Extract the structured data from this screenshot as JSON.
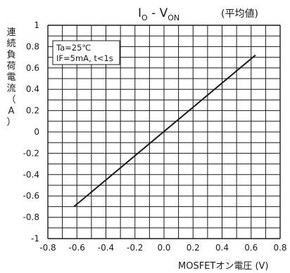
{
  "chart_data": {
    "type": "line",
    "title": "I",
    "title_sub1": "O",
    "title_mid": " - V",
    "title_sub2": "ON",
    "note": "(平均値)",
    "xlabel": "MOSFETオン電圧 (V)",
    "ylabel": "連続負荷電流（A）",
    "xlim": [
      -0.8,
      0.8
    ],
    "ylim": [
      -1,
      1
    ],
    "x_ticks": [
      "-0.8",
      "-0.6",
      "-0.4",
      "-0.2",
      "0.0",
      "0.2",
      "0.4",
      "0.6",
      "0.8"
    ],
    "y_ticks": [
      "1",
      "0.8",
      "0.6",
      "0.4",
      "0.2",
      "0",
      "-0.2",
      "-0.4",
      "-0.6",
      "-0.8",
      "-1"
    ],
    "grid": true,
    "conditions": [
      "Ta=25℃",
      "IF=5mA, t<1s"
    ],
    "series": [
      {
        "x": [
          -0.62,
          0.63
        ],
        "y": [
          -0.7,
          0.72
        ]
      }
    ],
    "colors": {
      "line": "#1a1a1a",
      "grid": "#1a1a1a",
      "background": "#ffffff"
    }
  }
}
